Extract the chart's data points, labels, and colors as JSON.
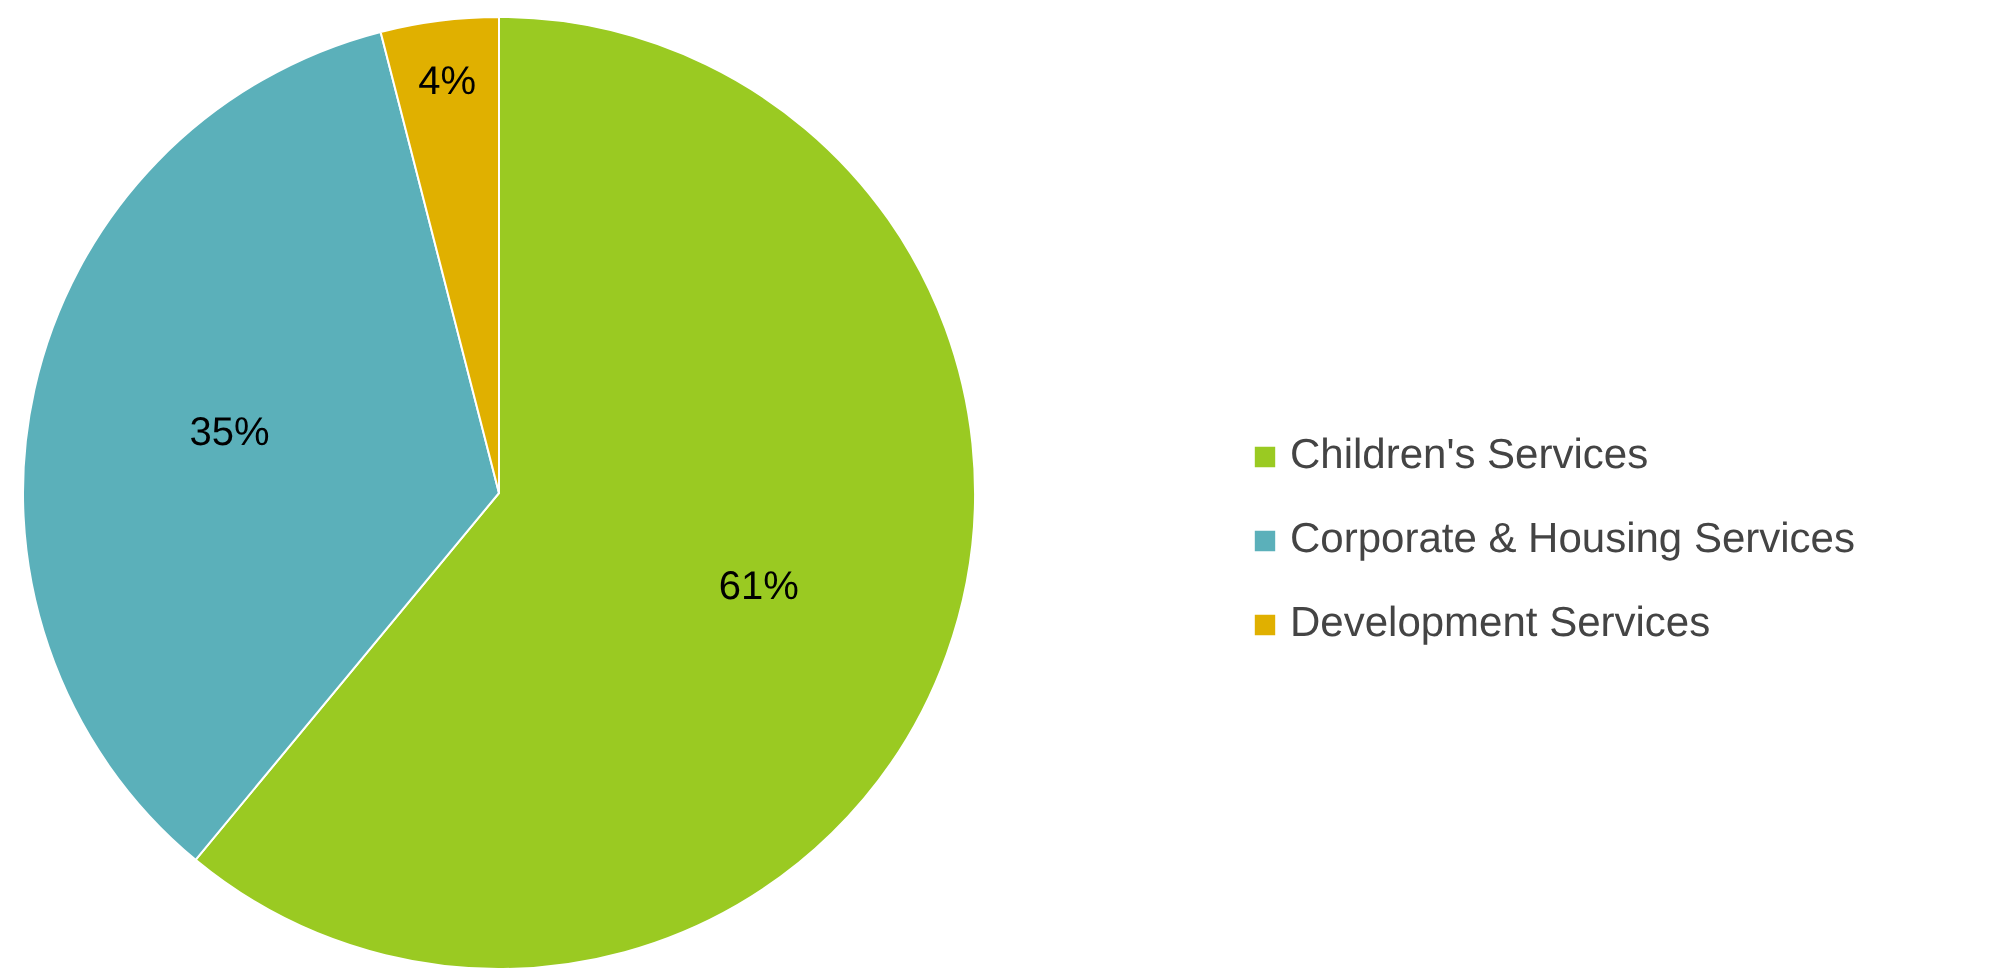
{
  "chart_data": {
    "type": "pie",
    "categories": [
      "Children's Services",
      "Corporate & Housing Services",
      "Development Services"
    ],
    "values": [
      61,
      35,
      4
    ],
    "colors": [
      "#9aca22",
      "#5bb0ba",
      "#e0b000"
    ],
    "value_labels": [
      "61%",
      "35%",
      "4%"
    ],
    "legend": "right"
  }
}
